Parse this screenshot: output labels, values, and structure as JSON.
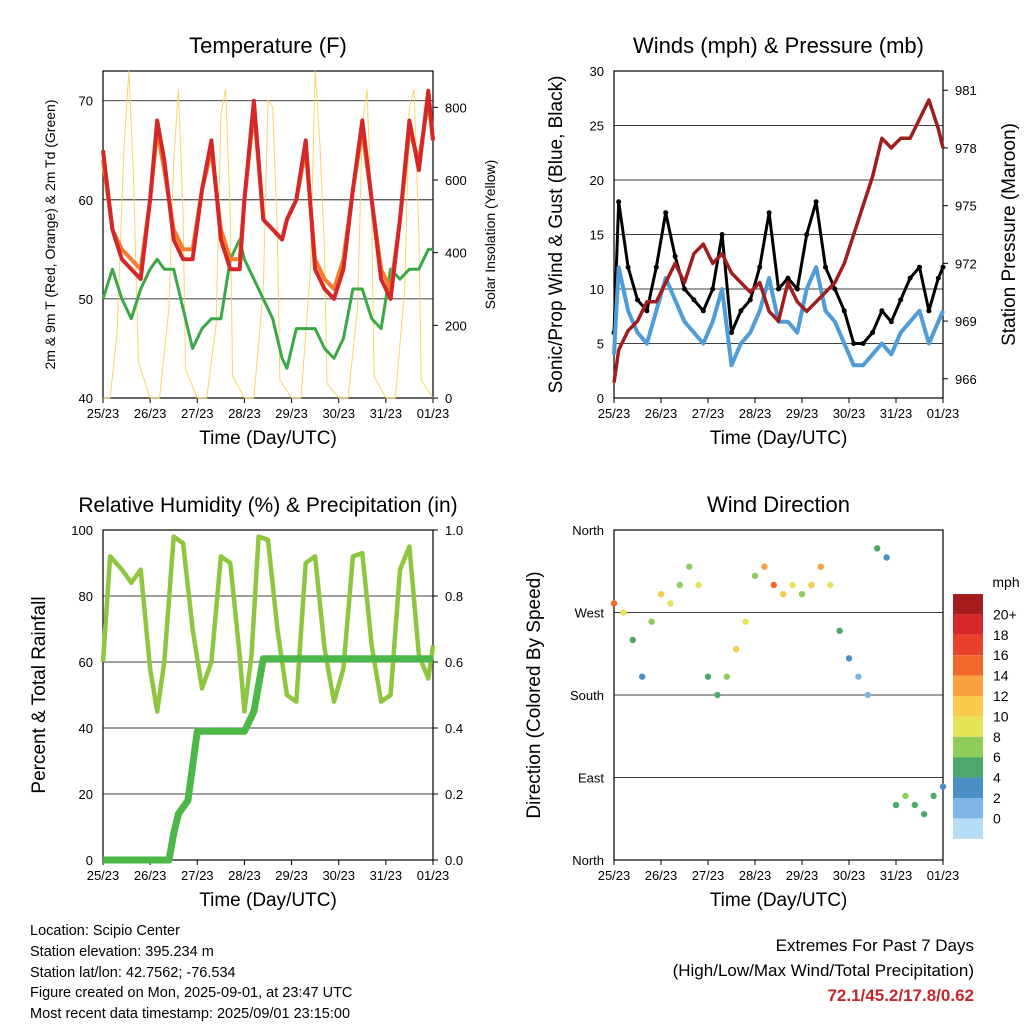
{
  "x_ticks": [
    "25/23",
    "26/23",
    "27/23",
    "28/23",
    "29/23",
    "30/23",
    "31/23",
    "01/23"
  ],
  "xlabel": "Time (Day/UTC)",
  "panels": {
    "temp": {
      "title": "Temperature (F)",
      "ylabel_left": "2m & 9m T (Red, Orange) & 2m Td (Green)",
      "ylabel_right": "Solar Insolation (Yellow)",
      "yticks_left": [
        "40",
        "50",
        "60",
        "70"
      ],
      "yticks_right": [
        "0",
        "200",
        "400",
        "600",
        "800"
      ]
    },
    "wind": {
      "title": "Winds (mph) & Pressure (mb)",
      "ylabel_left": "Sonic/Prop Wind & Gust (Blue, Black)",
      "ylabel_right": "Station Pressure (Maroon)",
      "yticks_left": [
        "0",
        "5",
        "10",
        "15",
        "20",
        "25",
        "30"
      ],
      "yticks_right": [
        "966",
        "969",
        "972",
        "975",
        "978",
        "981"
      ]
    },
    "rh": {
      "title": "Relative Humidity (%) & Precipitation (in)",
      "ylabel_left": "Percent & Total Rainfall",
      "yticks_left": [
        "0",
        "20",
        "40",
        "60",
        "80",
        "100"
      ],
      "yticks_right": [
        "0.0",
        "0.2",
        "0.4",
        "0.6",
        "0.8",
        "1.0"
      ]
    },
    "dir": {
      "title": "Wind Direction",
      "ylabel_left": "Direction (Colored By Speed)",
      "yticks_left": [
        "North",
        "East",
        "South",
        "West",
        "North"
      ],
      "legend_title": "mph",
      "legend_labels": [
        "20+",
        "18",
        "16",
        "14",
        "12",
        "10",
        "8",
        "6",
        "4",
        "2",
        "0"
      ],
      "legend_colors": [
        "#a51c1c",
        "#d62728",
        "#e8412b",
        "#f2692c",
        "#f9a03f",
        "#f7cc4d",
        "#e6e359",
        "#8fcd5b",
        "#4ca86b",
        "#4a8fc6",
        "#7fb6e3",
        "#b7dcf5"
      ]
    }
  },
  "info": {
    "location": "Location: Scipio Center",
    "elevation": "Station elevation: 395.234 m",
    "latlon": "Station lat/lon: 42.7562; -76.534",
    "created": "Figure created on Mon, 2025-09-01, at 23:47 UTC",
    "recent": "Most recent data timestamp: 2025/09/01 23:15:00"
  },
  "extremes": {
    "line1": "Extremes For Past 7 Days",
    "line2": "(High/Low/Max Wind/Total Precipitation)",
    "values": "72.1/45.2/17.8/0.62"
  },
  "chart_data": [
    {
      "type": "line",
      "title": "Temperature (F)",
      "x_unit": "days since 25/23",
      "ylim": [
        40,
        73
      ],
      "y2lim": [
        0,
        900
      ],
      "series": [
        {
          "name": "2m T (Red)",
          "color": "#d62728",
          "x": [
            0,
            0.2,
            0.4,
            0.6,
            0.8,
            1.0,
            1.15,
            1.3,
            1.5,
            1.7,
            1.9,
            2.1,
            2.3,
            2.5,
            2.7,
            2.9,
            3.0,
            3.2,
            3.4,
            3.6,
            3.8,
            3.9,
            4.1,
            4.3,
            4.5,
            4.7,
            4.9,
            5.1,
            5.3,
            5.5,
            5.7,
            5.9,
            6.1,
            6.3,
            6.5,
            6.7,
            6.9,
            7.0
          ],
          "values": [
            65,
            57,
            54,
            53,
            52,
            60,
            68,
            64,
            56,
            54,
            54,
            61,
            66,
            56,
            53,
            53,
            60,
            70,
            58,
            57,
            56,
            58,
            60,
            66,
            53,
            51,
            50,
            53,
            61,
            68,
            60,
            52,
            50,
            58,
            68,
            63,
            71,
            66
          ]
        },
        {
          "name": "9m T (Orange)",
          "color": "#f47c2a",
          "x": [
            0,
            0.2,
            0.4,
            0.6,
            0.8,
            1.0,
            1.15,
            1.3,
            1.5,
            1.7,
            1.9,
            2.1,
            2.3,
            2.5,
            2.7,
            2.9,
            3.0,
            3.2,
            3.4,
            3.6,
            3.8,
            3.9,
            4.1,
            4.3,
            4.5,
            4.7,
            4.9,
            5.1,
            5.3,
            5.5,
            5.7,
            5.9,
            6.1,
            6.3,
            6.5,
            6.7,
            6.9,
            7.0
          ],
          "values": [
            64,
            57,
            55,
            54,
            53,
            60,
            67,
            63,
            57,
            55,
            55,
            61,
            65,
            57,
            54,
            54,
            60,
            69,
            58,
            57,
            56,
            58,
            60,
            65,
            54,
            52,
            51,
            54,
            61,
            67,
            60,
            53,
            51,
            58,
            67,
            64,
            70,
            66
          ]
        },
        {
          "name": "2m Td (Green)",
          "color": "#3aa845",
          "x": [
            0,
            0.2,
            0.4,
            0.6,
            0.8,
            1.0,
            1.15,
            1.3,
            1.5,
            1.7,
            1.9,
            2.1,
            2.3,
            2.5,
            2.7,
            2.9,
            3.0,
            3.2,
            3.4,
            3.6,
            3.8,
            3.9,
            4.1,
            4.3,
            4.5,
            4.7,
            4.9,
            5.1,
            5.3,
            5.5,
            5.7,
            5.9,
            6.1,
            6.3,
            6.5,
            6.7,
            6.9,
            7.0
          ],
          "values": [
            50,
            53,
            50,
            48,
            51,
            53,
            54,
            53,
            53,
            49,
            45,
            47,
            48,
            48,
            54,
            56,
            54,
            52,
            50,
            48,
            44,
            43,
            47,
            47,
            47,
            45,
            44,
            46,
            51,
            51,
            48,
            47,
            53,
            52,
            53,
            53,
            55,
            55
          ]
        },
        {
          "name": "Solar Insolation (Yellow)",
          "color": "#f4d35e",
          "axis": "right",
          "x": [
            0,
            0.15,
            0.3,
            0.45,
            0.55,
            0.65,
            0.75,
            1.0,
            1.2,
            1.4,
            1.5,
            1.6,
            1.7,
            1.75,
            2.0,
            2.2,
            2.4,
            2.5,
            2.6,
            2.7,
            2.75,
            3.0,
            3.2,
            3.4,
            3.5,
            3.6,
            3.7,
            3.75,
            4.0,
            4.2,
            4.4,
            4.5,
            4.6,
            4.7,
            4.75,
            5.0,
            5.2,
            5.4,
            5.5,
            5.6,
            5.7,
            5.75,
            6.0,
            6.2,
            6.4,
            6.5,
            6.6,
            6.7,
            6.75,
            7.0
          ],
          "values": [
            0,
            0,
            180,
            700,
            900,
            600,
            100,
            0,
            0,
            250,
            650,
            850,
            500,
            80,
            0,
            0,
            200,
            780,
            850,
            500,
            60,
            0,
            0,
            300,
            820,
            800,
            450,
            50,
            0,
            0,
            350,
            900,
            700,
            400,
            40,
            0,
            0,
            250,
            750,
            850,
            500,
            60,
            0,
            0,
            300,
            800,
            850,
            450,
            50,
            0
          ]
        }
      ]
    },
    {
      "type": "line",
      "title": "Winds (mph) & Pressure (mb)",
      "x_unit": "days since 25/23",
      "ylim": [
        0,
        30
      ],
      "y2lim": [
        965,
        982
      ],
      "series": [
        {
          "name": "Gust (Black)",
          "color": "#000000",
          "x": [
            0,
            0.1,
            0.3,
            0.5,
            0.7,
            0.9,
            1.1,
            1.3,
            1.5,
            1.7,
            1.9,
            2.1,
            2.3,
            2.5,
            2.7,
            2.9,
            3.1,
            3.3,
            3.5,
            3.7,
            3.9,
            4.1,
            4.3,
            4.5,
            4.7,
            4.9,
            5.1,
            5.3,
            5.5,
            5.7,
            5.9,
            6.1,
            6.3,
            6.5,
            6.7,
            6.9,
            7.0
          ],
          "values": [
            6,
            18,
            12,
            9,
            8,
            12,
            17,
            13,
            10,
            9,
            8,
            10,
            15,
            6,
            8,
            9,
            12,
            17,
            10,
            11,
            10,
            15,
            18,
            12,
            10,
            8,
            5,
            5,
            6,
            8,
            7,
            9,
            11,
            12,
            8,
            11,
            12
          ]
        },
        {
          "name": "Wind (Blue)",
          "color": "#4f9cd8",
          "x": [
            0,
            0.1,
            0.3,
            0.5,
            0.7,
            0.9,
            1.1,
            1.3,
            1.5,
            1.7,
            1.9,
            2.1,
            2.3,
            2.5,
            2.7,
            2.9,
            3.1,
            3.3,
            3.5,
            3.7,
            3.9,
            4.1,
            4.3,
            4.5,
            4.7,
            4.9,
            5.1,
            5.3,
            5.5,
            5.7,
            5.9,
            6.1,
            6.3,
            6.5,
            6.7,
            6.9,
            7.0
          ],
          "values": [
            4,
            12,
            8,
            6,
            5,
            8,
            11,
            9,
            7,
            6,
            5,
            7,
            10,
            3,
            5,
            6,
            8,
            11,
            7,
            7,
            6,
            10,
            12,
            8,
            7,
            5,
            3,
            3,
            4,
            5,
            4,
            6,
            7,
            8,
            5,
            7,
            8
          ]
        },
        {
          "name": "Station Pressure (Maroon)",
          "color": "#a01e1e",
          "axis": "right",
          "x": [
            0,
            0.1,
            0.3,
            0.5,
            0.7,
            0.9,
            1.1,
            1.3,
            1.5,
            1.7,
            1.9,
            2.1,
            2.3,
            2.5,
            2.7,
            2.9,
            3.1,
            3.3,
            3.5,
            3.7,
            3.9,
            4.1,
            4.3,
            4.5,
            4.7,
            4.9,
            5.1,
            5.3,
            5.5,
            5.7,
            5.9,
            6.1,
            6.3,
            6.5,
            6.7,
            6.9,
            7.0
          ],
          "values": [
            965.8,
            967.5,
            968.5,
            969,
            970,
            970,
            971,
            972,
            971,
            972.5,
            973,
            972,
            972.5,
            971.5,
            971,
            970.5,
            971,
            969.5,
            969,
            971,
            970,
            969.5,
            970,
            970.5,
            971,
            972,
            973.5,
            975,
            976.5,
            978.5,
            978,
            978.5,
            978.5,
            979.5,
            980.5,
            979,
            978
          ]
        }
      ]
    },
    {
      "type": "line",
      "title": "Relative Humidity (%) & Precipitation (in)",
      "x_unit": "days since 25/23",
      "ylim": [
        0,
        100
      ],
      "y2lim": [
        0,
        1.0
      ],
      "series": [
        {
          "name": "Relative Humidity",
          "color": "#8dc63f",
          "x": [
            0,
            0.15,
            0.4,
            0.6,
            0.8,
            1.0,
            1.15,
            1.3,
            1.5,
            1.7,
            1.9,
            2.1,
            2.3,
            2.5,
            2.7,
            2.9,
            3.0,
            3.15,
            3.3,
            3.5,
            3.7,
            3.9,
            4.1,
            4.3,
            4.5,
            4.7,
            4.9,
            5.1,
            5.3,
            5.5,
            5.7,
            5.9,
            6.1,
            6.3,
            6.5,
            6.7,
            6.9,
            7.0
          ],
          "values": [
            60,
            92,
            88,
            84,
            88,
            58,
            45,
            60,
            98,
            96,
            70,
            52,
            60,
            92,
            90,
            62,
            45,
            62,
            98,
            97,
            70,
            50,
            48,
            90,
            92,
            64,
            48,
            58,
            92,
            93,
            65,
            48,
            50,
            88,
            95,
            62,
            55,
            65
          ]
        },
        {
          "name": "Total Rainfall",
          "color": "#4cb848",
          "axis": "right",
          "x": [
            0,
            0.5,
            1.0,
            1.4,
            1.5,
            1.6,
            1.8,
            2.0,
            2.2,
            2.5,
            3.0,
            3.2,
            3.4,
            4.0,
            5.0,
            6.0,
            7.0
          ],
          "values": [
            0,
            0,
            0,
            0,
            0.08,
            0.14,
            0.18,
            0.39,
            0.39,
            0.39,
            0.39,
            0.45,
            0.61,
            0.61,
            0.61,
            0.61,
            0.61
          ]
        }
      ]
    },
    {
      "type": "scatter",
      "title": "Wind Direction",
      "x_unit": "days since 25/23",
      "ylim": [
        0,
        360
      ],
      "y_labels": [
        "North",
        "East",
        "South",
        "West",
        "North"
      ],
      "series": [
        {
          "name": "Direction",
          "x": [
            0,
            0.2,
            0.4,
            0.6,
            0.8,
            1.0,
            1.2,
            1.4,
            1.6,
            1.8,
            2.0,
            2.2,
            2.4,
            2.6,
            2.8,
            3.0,
            3.2,
            3.4,
            3.6,
            3.8,
            4.0,
            4.2,
            4.4,
            4.6,
            4.8,
            5.0,
            5.2,
            5.4,
            5.6,
            5.8,
            6.0,
            6.2,
            6.4,
            6.6,
            6.8,
            7.0
          ],
          "values": [
            280,
            270,
            240,
            200,
            260,
            290,
            280,
            300,
            320,
            300,
            200,
            180,
            200,
            230,
            260,
            310,
            320,
            300,
            290,
            300,
            290,
            300,
            320,
            300,
            250,
            220,
            200,
            180,
            340,
            330,
            60,
            70,
            60,
            50,
            70,
            80
          ],
          "speeds": [
            15,
            10,
            5,
            4,
            8,
            12,
            9,
            8,
            7,
            9,
            6,
            6,
            8,
            12,
            10,
            8,
            14,
            15,
            12,
            10,
            8,
            12,
            14,
            10,
            6,
            3,
            2,
            2,
            5,
            4,
            6,
            7,
            6,
            5,
            6,
            4
          ]
        }
      ]
    }
  ]
}
